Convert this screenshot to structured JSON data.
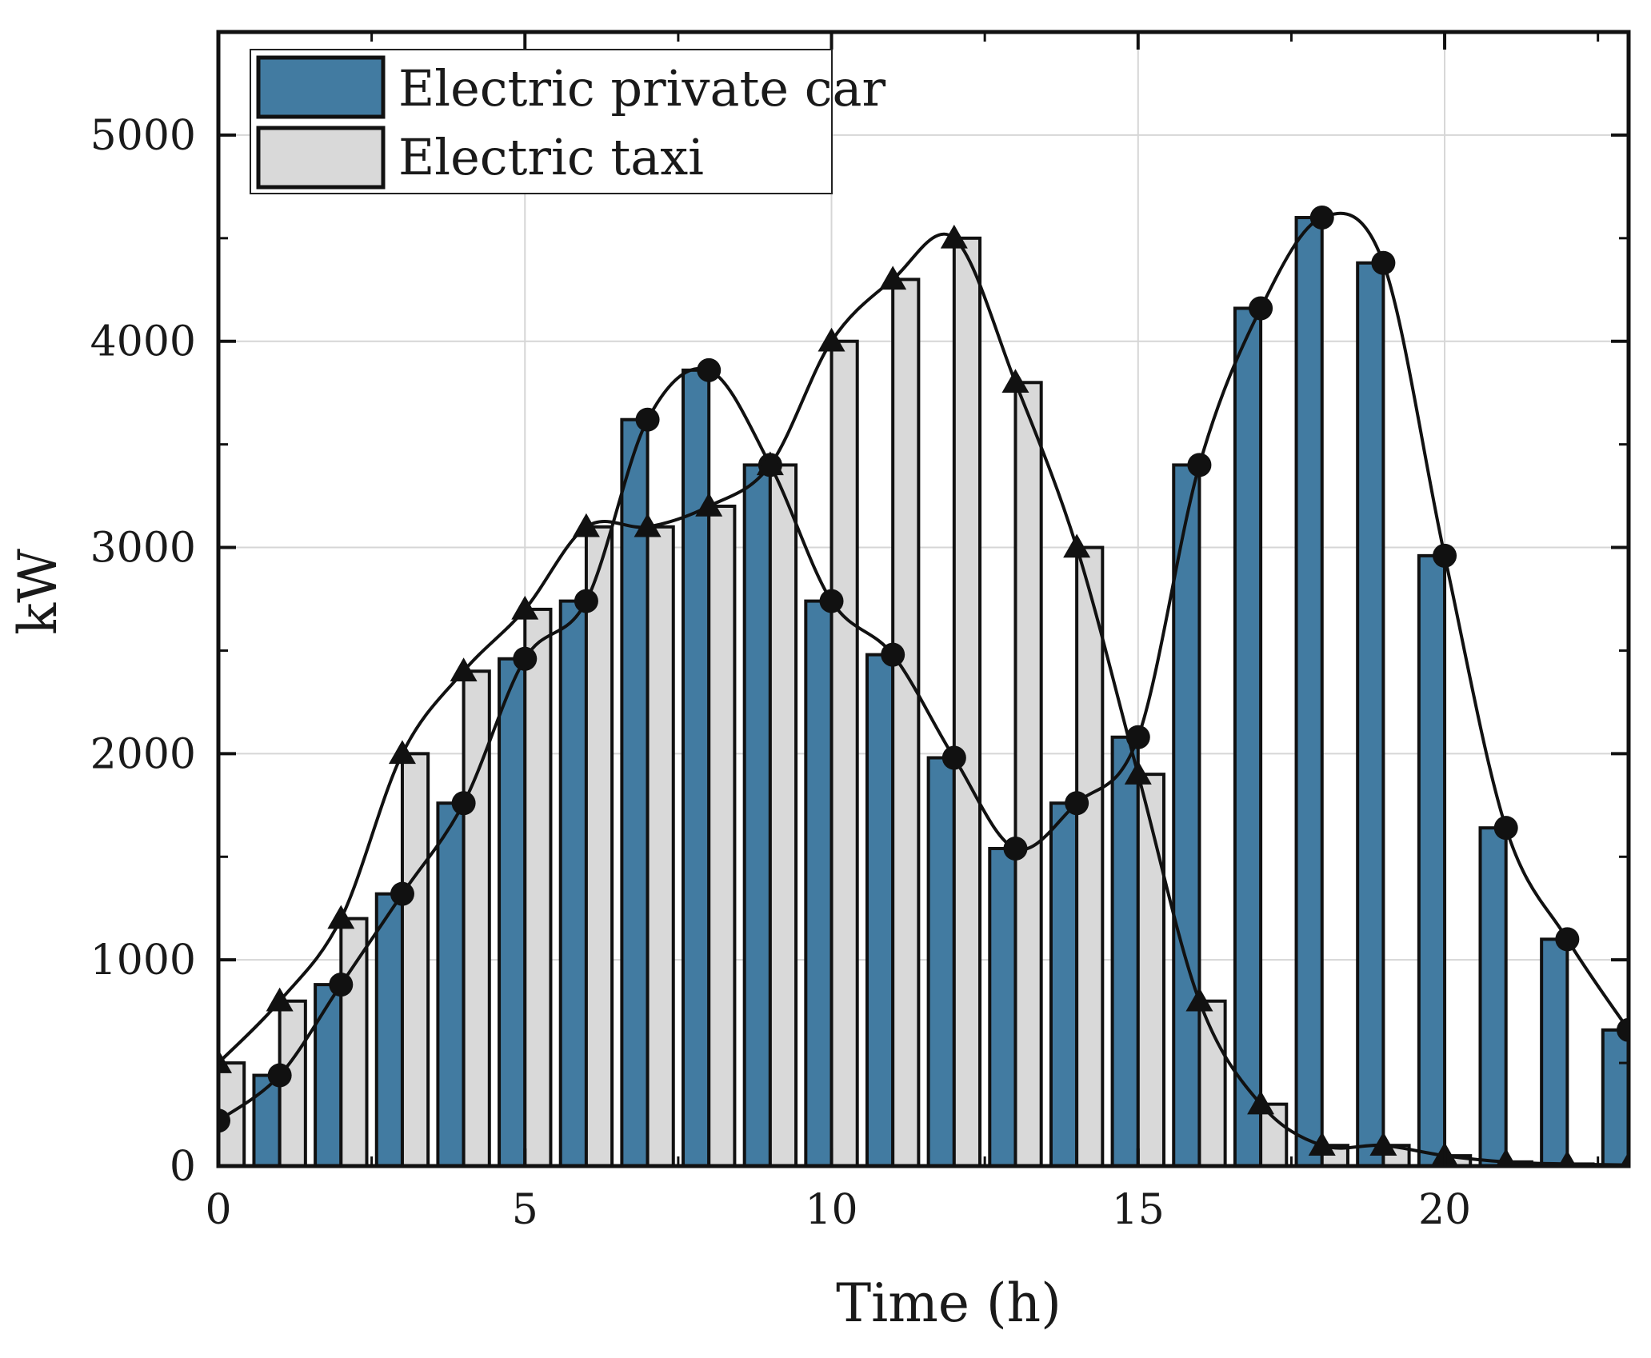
{
  "chart_data": {
    "type": "bar",
    "title": "",
    "xlabel": "Time (h)",
    "ylabel": "kW",
    "xlim": [
      0,
      23
    ],
    "ylim": [
      0,
      5500
    ],
    "xticks": [
      0,
      5,
      10,
      15,
      20
    ],
    "yticks": [
      0,
      1000,
      2000,
      3000,
      4000,
      5000
    ],
    "grid": true,
    "legend_position": "top-left",
    "hours": [
      0,
      1,
      2,
      3,
      4,
      5,
      6,
      7,
      8,
      9,
      10,
      11,
      12,
      13,
      14,
      15,
      16,
      17,
      18,
      19,
      20,
      21,
      22,
      23
    ],
    "series": [
      {
        "name": "Electric private car",
        "color": "#427BA1",
        "marker": "circle",
        "values": [
          220,
          440,
          880,
          1320,
          1760,
          2460,
          2740,
          3620,
          3860,
          3400,
          2740,
          2480,
          1980,
          1540,
          1760,
          2080,
          3400,
          4160,
          4600,
          4380,
          2960,
          1640,
          1100,
          660
        ]
      },
      {
        "name": "Electric taxi",
        "color": "#D9D9D9",
        "marker": "triangle",
        "values": [
          500,
          800,
          1200,
          2000,
          2400,
          2700,
          3100,
          3100,
          3200,
          3400,
          4000,
          4300,
          4500,
          3800,
          3000,
          1900,
          800,
          300,
          100,
          100,
          50,
          20,
          10,
          5
        ]
      }
    ]
  }
}
